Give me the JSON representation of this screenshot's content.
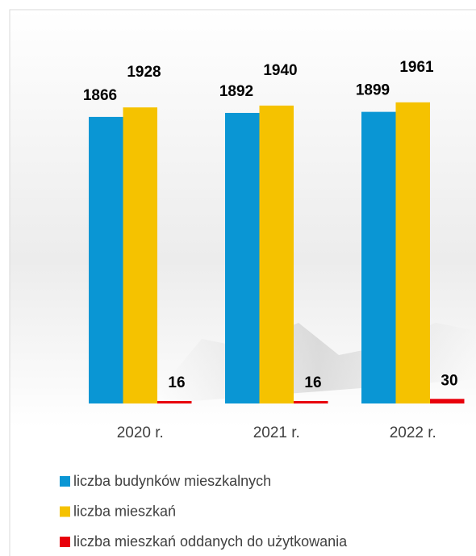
{
  "chart_data": {
    "type": "bar",
    "categories": [
      "2020 r.",
      "2021 r.",
      "2022 r."
    ],
    "series": [
      {
        "name": "liczba budynków mieszkalnych",
        "color": "#0a96d4",
        "values": [
          1866,
          1892,
          1899
        ]
      },
      {
        "name": "liczba mieszkań",
        "color": "#f5c200",
        "values": [
          1928,
          1940,
          1961
        ]
      },
      {
        "name": "liczba mieszkań oddanych do użytkowania",
        "color": "#e8000b",
        "values": [
          16,
          16,
          30
        ]
      }
    ]
  }
}
